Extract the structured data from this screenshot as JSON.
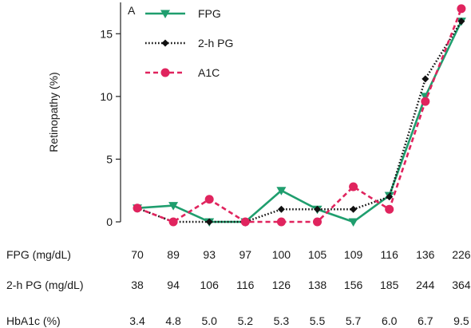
{
  "chart_data": {
    "type": "line",
    "panel_label": "A",
    "ylabel": "Retinopathy (%)",
    "ylim": [
      0,
      17.5
    ],
    "yticks": [
      0,
      5,
      10,
      15
    ],
    "series": [
      {
        "name": "FPG",
        "color": "#1f9e6e",
        "marker": "triangle-down",
        "dash": "solid",
        "values": [
          1.1,
          1.3,
          0.0,
          0.0,
          2.5,
          1.0,
          0.0,
          2.1,
          10.0,
          16.0
        ]
      },
      {
        "name": "2-h PG",
        "color": "#111111",
        "marker": "diamond",
        "dash": "dotted",
        "values": [
          1.1,
          0.0,
          0.0,
          0.0,
          1.0,
          1.0,
          1.0,
          2.0,
          11.4,
          16.0
        ]
      },
      {
        "name": "A1C",
        "color": "#e0245e",
        "marker": "circle",
        "dash": "dashed",
        "values": [
          1.1,
          0.0,
          1.8,
          0.0,
          0.0,
          0.0,
          2.8,
          1.0,
          9.6,
          17.0
        ]
      }
    ],
    "table": [
      {
        "label": "FPG (mg/dL)",
        "values": [
          "70",
          "89",
          "93",
          "97",
          "100",
          "105",
          "109",
          "116",
          "136",
          "226"
        ]
      },
      {
        "label": "2-h PG (mg/dL)",
        "values": [
          "38",
          "94",
          "106",
          "116",
          "126",
          "138",
          "156",
          "185",
          "244",
          "364"
        ]
      },
      {
        "label": "HbA1c (%)",
        "values": [
          "3.4",
          "4.8",
          "5.0",
          "5.2",
          "5.3",
          "5.5",
          "5.7",
          "6.0",
          "6.7",
          "9.5"
        ]
      }
    ],
    "grid": false,
    "legend_position": "top-left"
  }
}
